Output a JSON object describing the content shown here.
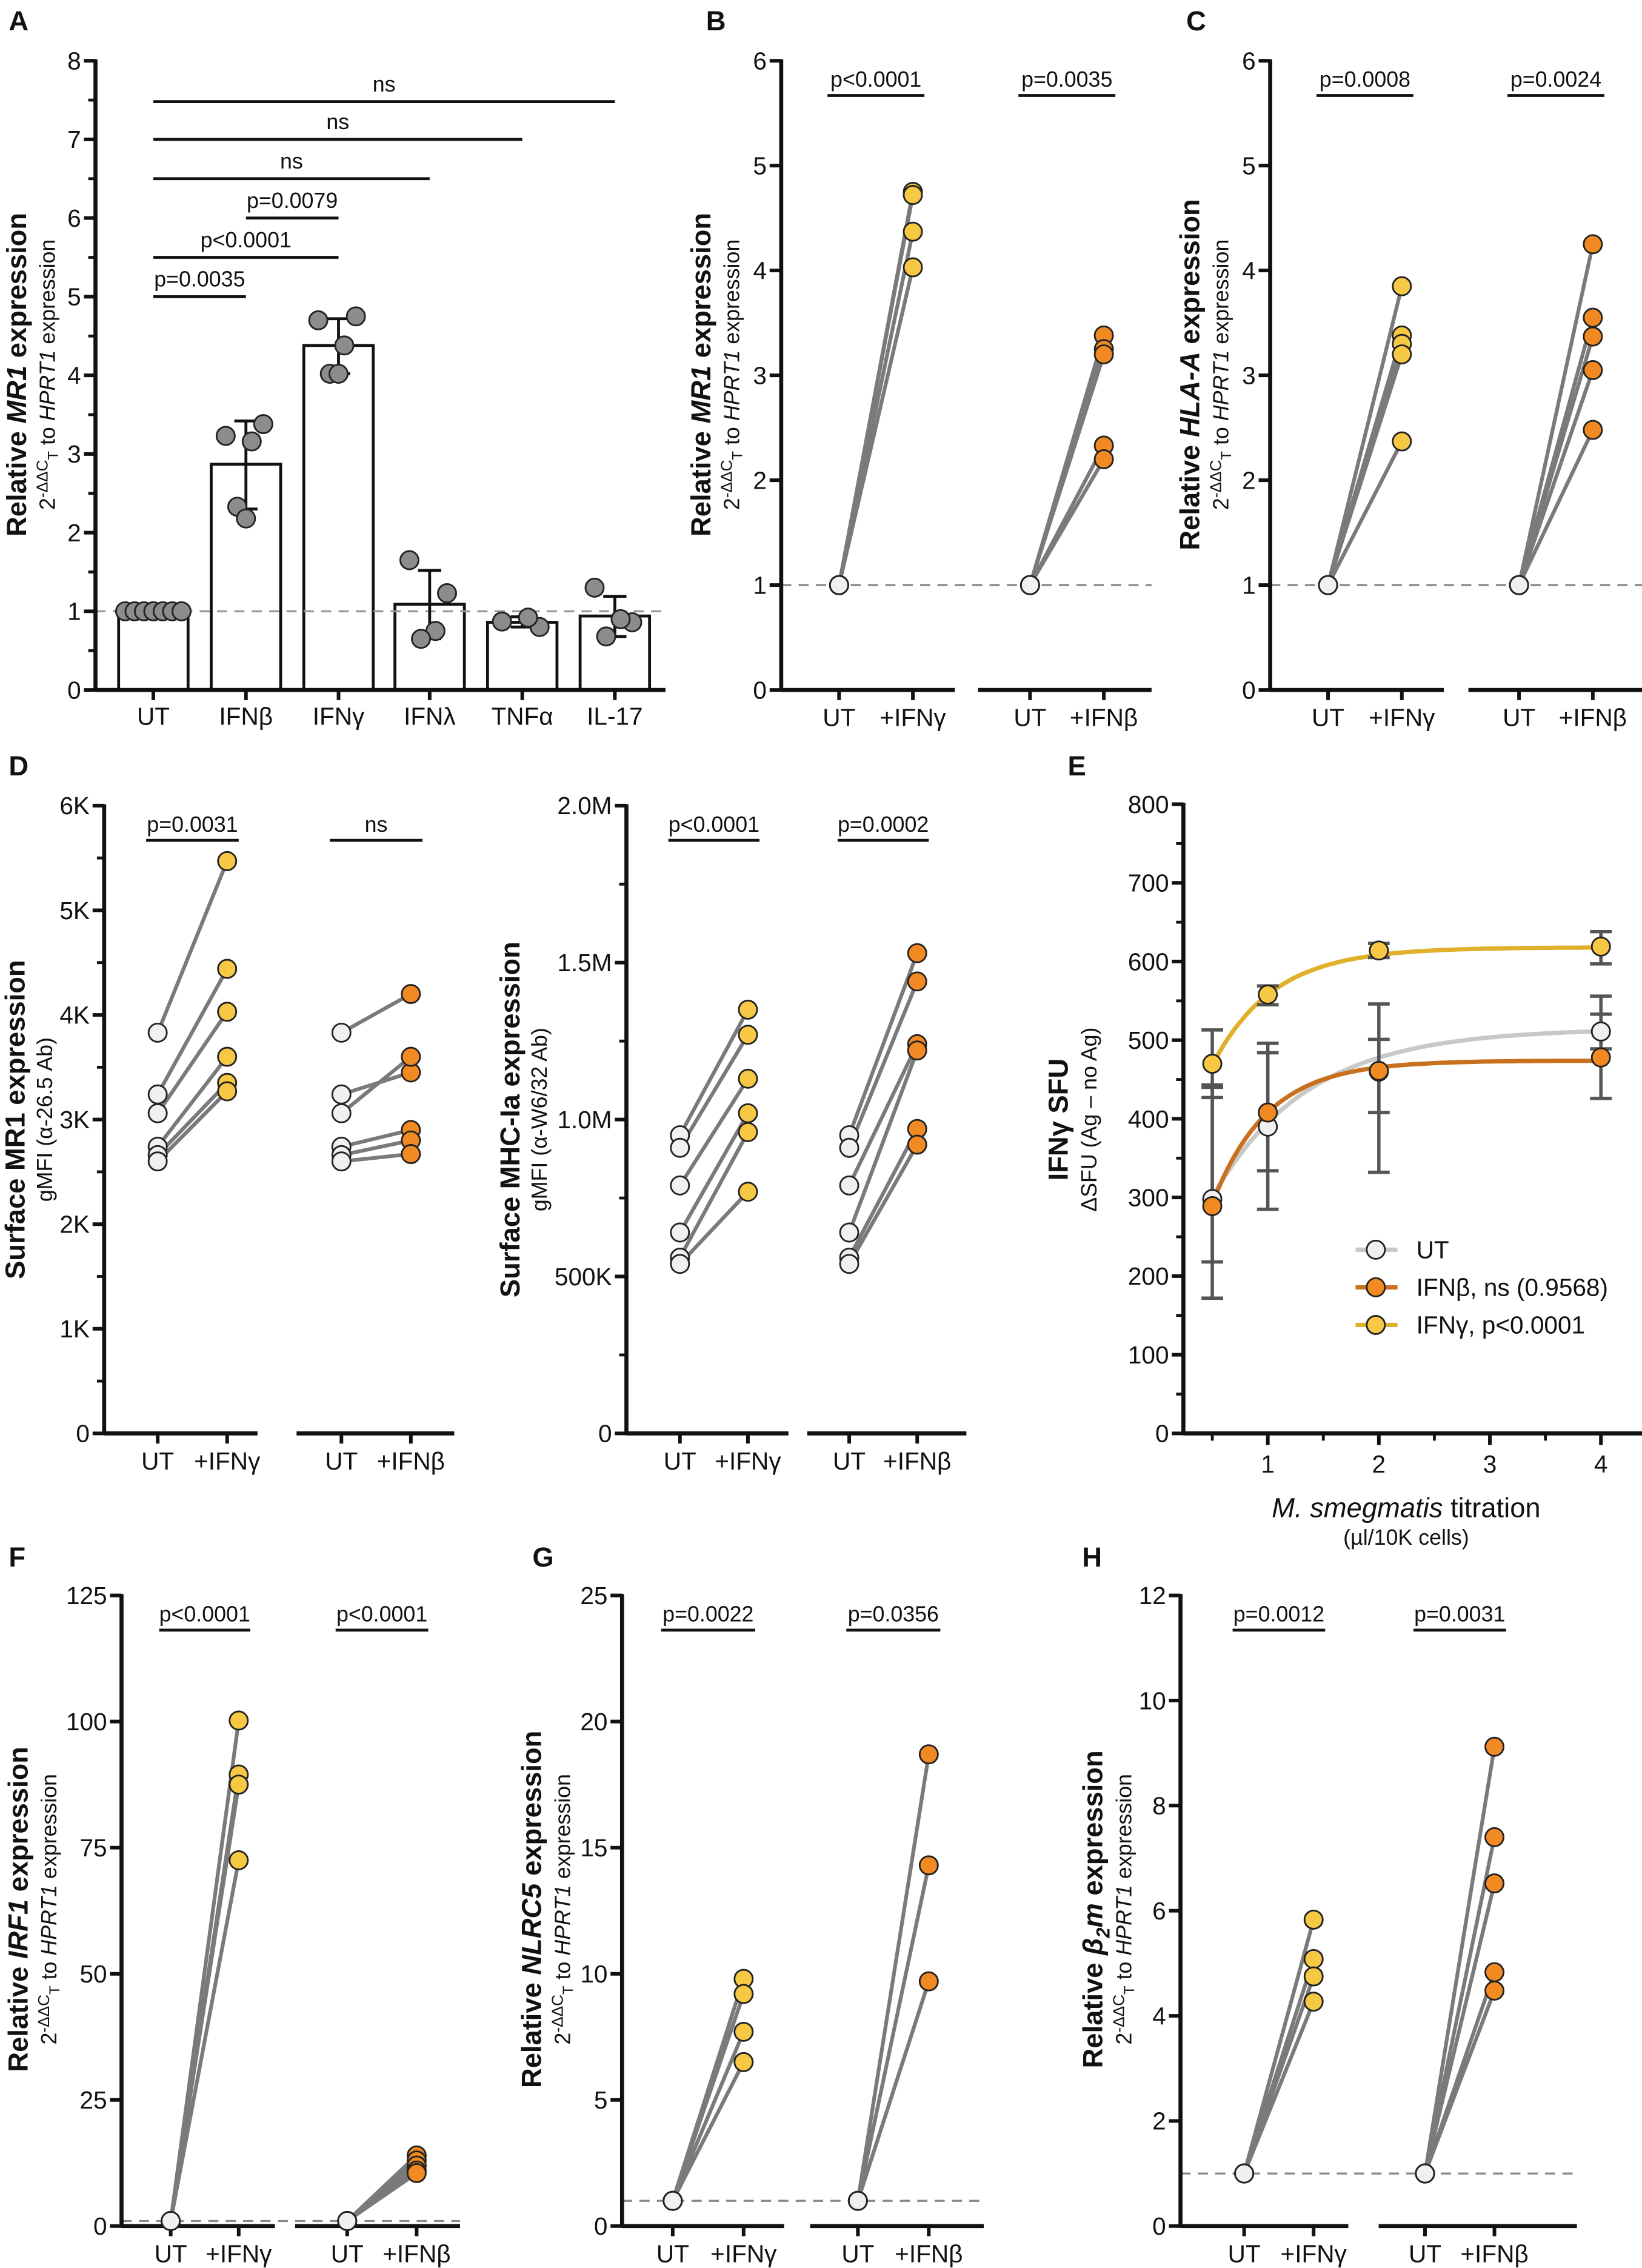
{
  "colors": {
    "UT": "#f0f0f0",
    "IFNγ": "#f7c843",
    "IFNβ": "#f28a24",
    "bar_points": "#8c8c8c",
    "pair_line": "#7a7a7a",
    "UT_curve": "#c8c8c8",
    "IFNβ_curve": "#c8701e",
    "IFNγ_curve": "#e0b02a"
  },
  "chart_data": [
    {
      "panel": "A",
      "type": "bar",
      "ylabel": "Relative MR1 expression",
      "ylabel_italic": "MR1",
      "ysublabel": "2-ΔΔCT to HPRT1 expression",
      "ylim": [
        0,
        8
      ],
      "yticks": [
        0,
        1,
        2,
        3,
        4,
        5,
        6,
        7,
        8
      ],
      "ytick_labels": [
        "0",
        "1",
        "2",
        "3",
        "4",
        "5",
        "6",
        "7",
        "8"
      ],
      "minor_step": 0.5,
      "categories": [
        "UT",
        "IFNβ",
        "IFNγ",
        "IFNλ",
        "TNFα",
        "IL-17"
      ],
      "values": [
        1.0,
        2.87,
        4.38,
        1.09,
        0.86,
        0.94
      ],
      "sd_low": [
        1.0,
        2.3,
        4.02,
        0.65,
        0.8,
        0.68
      ],
      "sd_high": [
        1.0,
        3.42,
        4.72,
        1.52,
        0.93,
        1.19
      ],
      "points": [
        [
          1,
          1,
          1,
          1,
          1,
          1,
          1
        ],
        [
          3.23,
          3.38,
          3.16,
          2.33,
          2.18
        ],
        [
          4.7,
          4.75,
          4.38,
          4.02,
          4.02
        ],
        [
          1.65,
          1.23,
          0.75,
          0.65
        ],
        [
          0.87,
          0.8,
          0.92
        ],
        [
          1.3,
          0.86,
          0.9,
          0.68
        ]
      ],
      "reference_line": 1,
      "comparisons": [
        {
          "from": 0,
          "to": 1,
          "y": 5.0,
          "label": "p=0.0035"
        },
        {
          "from": 0,
          "to": 2,
          "y": 5.5,
          "label": "p<0.0001"
        },
        {
          "from": 1,
          "to": 2,
          "y": 6.0,
          "label": "p=0.0079"
        },
        {
          "from": 0,
          "to": 3,
          "y": 6.5,
          "label": "ns"
        },
        {
          "from": 0,
          "to": 4,
          "y": 7.0,
          "label": "ns"
        },
        {
          "from": 0,
          "to": 5,
          "y": 7.48,
          "label": "ns"
        }
      ]
    },
    {
      "panel": "B",
      "type": "paired-scatter",
      "ylabel": "Relative MR1 expression",
      "ylabel_italic": "MR1",
      "ysublabel": "2-ΔΔCT to HPRT1 expression",
      "ylim": [
        0,
        6
      ],
      "yticks": [
        0,
        1,
        2,
        3,
        4,
        5,
        6
      ],
      "ytick_labels": [
        "0",
        "1",
        "2",
        "3",
        "4",
        "5",
        "6"
      ],
      "reference_line": 1,
      "groups": [
        {
          "labels": [
            "UT",
            "+IFNγ"
          ],
          "treatment": "IFNγ",
          "p": "p<0.0001",
          "before": [
            1,
            1,
            1,
            1
          ],
          "after": [
            4.75,
            4.72,
            4.37,
            4.03
          ]
        },
        {
          "labels": [
            "UT",
            "+IFNβ"
          ],
          "treatment": "IFNβ",
          "p": "p=0.0035",
          "before": [
            1,
            1,
            1,
            1,
            1
          ],
          "after": [
            3.38,
            3.25,
            3.2,
            2.33,
            2.2
          ]
        }
      ]
    },
    {
      "panel": "C",
      "type": "paired-scatter",
      "ylabel": "Relative HLA-A expression",
      "ylabel_italic": "HLA-A",
      "ysublabel": "2-ΔΔCT to HPRT1 expression",
      "ylim": [
        0,
        6
      ],
      "yticks": [
        0,
        1,
        2,
        3,
        4,
        5,
        6
      ],
      "ytick_labels": [
        "0",
        "1",
        "2",
        "3",
        "4",
        "5",
        "6"
      ],
      "reference_line": 1,
      "groups": [
        {
          "labels": [
            "UT",
            "+IFNγ"
          ],
          "treatment": "IFNγ",
          "p": "p=0.0008",
          "before": [
            1,
            1,
            1,
            1,
            1
          ],
          "after": [
            3.85,
            3.38,
            3.3,
            3.2,
            2.37
          ]
        },
        {
          "labels": [
            "UT",
            "+IFNβ"
          ],
          "treatment": "IFNβ",
          "p": "p=0.0024",
          "before": [
            1,
            1,
            1,
            1,
            1
          ],
          "after": [
            4.25,
            3.55,
            3.37,
            3.05,
            2.48
          ]
        }
      ]
    },
    {
      "panel": "D",
      "type": "paired-scatter",
      "ylabel": "Surface MR1 expression",
      "ylabel_italic": "",
      "ysublabel": "gMFI (α-26.5 Ab)",
      "ylim": [
        0,
        6000
      ],
      "yticks": [
        0,
        1000,
        2000,
        3000,
        4000,
        5000,
        6000
      ],
      "ytick_labels": [
        "0",
        "1K",
        "2K",
        "3K",
        "4K",
        "5K",
        "6K"
      ],
      "minor_step": 500,
      "groups": [
        {
          "labels": [
            "UT",
            "+IFNγ"
          ],
          "treatment": "IFNγ",
          "p": "p=0.0031",
          "before": [
            3830,
            3240,
            3060,
            2740,
            2660,
            2600
          ],
          "after": [
            5470,
            4440,
            4030,
            3600,
            3350,
            3270
          ]
        },
        {
          "labels": [
            "UT",
            "+IFNβ"
          ],
          "treatment": "IFNβ",
          "p": "ns",
          "before": [
            3830,
            3240,
            3060,
            2740,
            2660,
            2600
          ],
          "after": [
            4200,
            3450,
            3600,
            2900,
            2800,
            2670
          ]
        }
      ]
    },
    {
      "panel": "D-right",
      "type": "paired-scatter",
      "ylabel": "Surface MHC-Ia expression",
      "ylabel_italic": "",
      "ysublabel": "gMFI (α-W6/32 Ab)",
      "ylim": [
        0,
        2000000
      ],
      "yticks": [
        0,
        500000,
        1000000,
        1500000,
        2000000
      ],
      "ytick_labels": [
        "0",
        "500K",
        "1.0M",
        "1.5M",
        "2.0M"
      ],
      "minor_step": 250000,
      "groups": [
        {
          "labels": [
            "UT",
            "+IFNγ"
          ],
          "treatment": "IFNγ",
          "p": "p<0.0001",
          "before": [
            950000,
            910000,
            790000,
            640000,
            560000,
            540000
          ],
          "after": [
            1350000,
            1270000,
            1130000,
            1020000,
            960000,
            770000
          ]
        },
        {
          "labels": [
            "UT",
            "+IFNβ"
          ],
          "treatment": "IFNβ",
          "p": "p=0.0002",
          "before": [
            950000,
            910000,
            790000,
            640000,
            560000,
            540000
          ],
          "after": [
            1530000,
            1440000,
            1240000,
            1220000,
            970000,
            920000
          ]
        }
      ]
    },
    {
      "panel": "E",
      "type": "line",
      "ylabel": "IFNγ SFU",
      "ysublabel": "ΔSFU (Ag – no Ag)",
      "xlabel": "M. smegmatis titration",
      "xlabel_italic": "M. smegmatis",
      "xsublabel": "(µl/10K cells)",
      "ylim": [
        0,
        800
      ],
      "yticks": [
        0,
        100,
        200,
        300,
        400,
        500,
        600,
        700,
        800
      ],
      "ytick_labels": [
        "0",
        "100",
        "200",
        "300",
        "400",
        "500",
        "600",
        "700",
        "800"
      ],
      "minor_step": 50,
      "xticks": [
        1,
        2,
        3,
        4
      ],
      "xtick_labels": [
        "1",
        "2",
        "3",
        "4"
      ],
      "x_minor_step": 0.5,
      "x": [
        0.5,
        1,
        2,
        4
      ],
      "series": [
        {
          "name": "UT",
          "legend": "UT",
          "values": [
            298,
            390,
            460,
            511
          ],
          "err_low": [
            218,
            334,
            408,
            489
          ],
          "err_high": [
            440,
            484,
            501,
            533
          ],
          "fit": {
            "y0": 300,
            "plateau": 515,
            "k": 1.17
          }
        },
        {
          "name": "IFNβ",
          "legend": "IFNβ, ns (0.9568)",
          "values": [
            289,
            408,
            461,
            478
          ],
          "err_low": [
            172,
            285,
            332,
            426
          ],
          "err_high": [
            443,
            496,
            546,
            556
          ],
          "fit": {
            "y0": 292,
            "plateau": 474,
            "k": 2.03
          }
        },
        {
          "name": "IFNγ",
          "legend": "IFNγ, p<0.0001",
          "values": [
            470,
            558,
            614,
            619
          ],
          "err_low": [
            427,
            545,
            605,
            597
          ],
          "err_high": [
            513,
            569,
            623,
            638
          ],
          "fit": {
            "y0": 468,
            "plateau": 618,
            "k": 1.83
          }
        }
      ],
      "legend_position": "bottom-right"
    },
    {
      "panel": "F",
      "type": "paired-scatter",
      "ylabel": "Relative IRF1 expression",
      "ylabel_italic": "IRF1",
      "ysublabel": "2-ΔΔCT to HPRT1 expression",
      "ylim": [
        0,
        125
      ],
      "yticks": [
        0,
        25,
        50,
        75,
        100,
        125
      ],
      "ytick_labels": [
        "0",
        "25",
        "50",
        "75",
        "100",
        "125"
      ],
      "reference_line": 1,
      "groups": [
        {
          "labels": [
            "UT",
            "+IFNγ"
          ],
          "treatment": "IFNγ",
          "p": "p<0.0001",
          "before": [
            1,
            1,
            1,
            1
          ],
          "after": [
            100.2,
            89.5,
            87.5,
            72.5
          ]
        },
        {
          "labels": [
            "UT",
            "+IFNβ"
          ],
          "treatment": "IFNβ",
          "p": "p<0.0001",
          "before": [
            1,
            1,
            1,
            1,
            1
          ],
          "after": [
            14,
            13,
            12,
            11,
            10.5
          ]
        }
      ]
    },
    {
      "panel": "G",
      "type": "paired-scatter",
      "ylabel": "Relative NLRC5 expression",
      "ylabel_italic": "NLRC5",
      "ysublabel": "2-ΔΔCT to HPRT1 expression",
      "ylim": [
        0,
        25
      ],
      "yticks": [
        0,
        5,
        10,
        15,
        20,
        25
      ],
      "ytick_labels": [
        "0",
        "5",
        "10",
        "15",
        "20",
        "25"
      ],
      "reference_line": 1,
      "groups": [
        {
          "labels": [
            "UT",
            "+IFNγ"
          ],
          "treatment": "IFNγ",
          "p": "p=0.0022",
          "before": [
            1,
            1,
            1,
            1
          ],
          "after": [
            9.8,
            9.2,
            7.7,
            6.5
          ]
        },
        {
          "labels": [
            "UT",
            "+IFNβ"
          ],
          "treatment": "IFNβ",
          "p": "p=0.0356",
          "before": [
            1,
            1,
            1
          ],
          "after": [
            18.7,
            14.3,
            9.7
          ]
        }
      ]
    },
    {
      "panel": "H",
      "type": "paired-scatter",
      "ylabel": "Relative β2m expression",
      "ylabel_italic": "β2m",
      "ysublabel": "2-ΔΔCT to HPRT1 expression",
      "ylim": [
        0,
        12
      ],
      "yticks": [
        0,
        2,
        4,
        6,
        8,
        10,
        12
      ],
      "ytick_labels": [
        "0",
        "2",
        "4",
        "6",
        "8",
        "10",
        "12"
      ],
      "reference_line": 1,
      "groups": [
        {
          "labels": [
            "UT",
            "+IFNγ"
          ],
          "treatment": "IFNγ",
          "p": "p=0.0012",
          "before": [
            1,
            1,
            1,
            1
          ],
          "after": [
            5.83,
            5.08,
            4.75,
            4.27
          ]
        },
        {
          "labels": [
            "UT",
            "+IFNβ"
          ],
          "treatment": "IFNβ",
          "p": "p=0.0031",
          "before": [
            1,
            1,
            1,
            1,
            1
          ],
          "after": [
            9.12,
            7.4,
            6.52,
            4.83,
            4.48
          ]
        }
      ]
    }
  ]
}
